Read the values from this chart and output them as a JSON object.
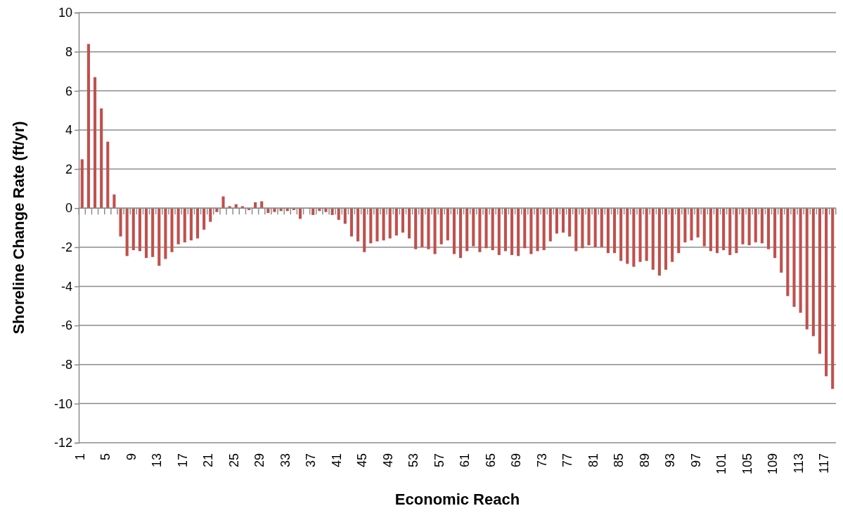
{
  "chart_data": {
    "type": "bar",
    "xlabel": "Economic Reach",
    "ylabel": "Shoreline Change Rate (ft/yr)",
    "categories": [
      "1",
      null,
      null,
      null,
      "5",
      null,
      null,
      null,
      "9",
      null,
      null,
      null,
      "13",
      null,
      null,
      null,
      "17",
      null,
      null,
      null,
      "21",
      null,
      null,
      null,
      "25",
      null,
      null,
      null,
      "29",
      null,
      null,
      null,
      "33",
      null,
      null,
      null,
      "37",
      null,
      null,
      null,
      "41",
      null,
      null,
      null,
      "45",
      null,
      null,
      null,
      "49",
      null,
      null,
      null,
      "53",
      null,
      null,
      null,
      "57",
      null,
      null,
      null,
      "61",
      null,
      null,
      null,
      "65",
      null,
      null,
      null,
      "69",
      null,
      null,
      null,
      "73",
      null,
      null,
      null,
      "77",
      null,
      null,
      null,
      "81",
      null,
      null,
      null,
      "85",
      null,
      null,
      null,
      "89",
      null,
      null,
      null,
      "93",
      null,
      null,
      null,
      "97",
      null,
      null,
      null,
      "101",
      null,
      null,
      null,
      "105",
      null,
      null,
      null,
      "109",
      null,
      null,
      null,
      "113",
      null,
      null,
      null,
      "117",
      null
    ],
    "values": [
      2.5,
      8.4,
      6.7,
      5.1,
      3.4,
      0.7,
      -1.45,
      -2.45,
      -2.15,
      -2.2,
      -2.55,
      -2.5,
      -2.95,
      -2.6,
      -2.25,
      -1.85,
      -1.75,
      -1.65,
      -1.55,
      -1.1,
      -0.7,
      -0.2,
      0.6,
      0.1,
      0.2,
      0.1,
      -0.1,
      0.3,
      0.35,
      -0.25,
      -0.2,
      -0.15,
      -0.15,
      -0.1,
      -0.55,
      0,
      -0.35,
      -0.15,
      -0.2,
      -0.35,
      -0.6,
      -0.8,
      -1.45,
      -1.7,
      -2.25,
      -1.8,
      -1.7,
      -1.65,
      -1.55,
      -1.4,
      -1.25,
      -1.55,
      -2.1,
      -2.0,
      -2.1,
      -2.35,
      -1.85,
      -1.65,
      -2.35,
      -2.55,
      -2.2,
      -1.95,
      -2.25,
      -2.05,
      -2.15,
      -2.4,
      -2.2,
      -2.4,
      -2.45,
      -2.05,
      -2.35,
      -2.2,
      -2.15,
      -1.7,
      -1.3,
      -1.25,
      -1.45,
      -2.2,
      -2.05,
      -1.9,
      -2.0,
      -2.0,
      -2.3,
      -2.3,
      -2.7,
      -2.85,
      -3.0,
      -2.75,
      -2.7,
      -3.15,
      -3.45,
      -3.15,
      -2.75,
      -2.3,
      -1.75,
      -1.65,
      -1.5,
      -1.95,
      -2.2,
      -2.3,
      -2.15,
      -2.4,
      -2.3,
      -1.85,
      -1.9,
      -1.75,
      -1.8,
      -2.1,
      -2.55,
      -3.3,
      -4.5,
      -5.05,
      -5.35,
      -6.2,
      -6.55,
      -7.45,
      -8.6,
      -9.25
    ],
    "color": "#c0504d",
    "ylim": [
      -12,
      10
    ],
    "yticks": [
      -12,
      -10,
      -8,
      -6,
      -4,
      -2,
      0,
      2,
      4,
      6,
      8,
      10
    ],
    "grid": "y"
  }
}
